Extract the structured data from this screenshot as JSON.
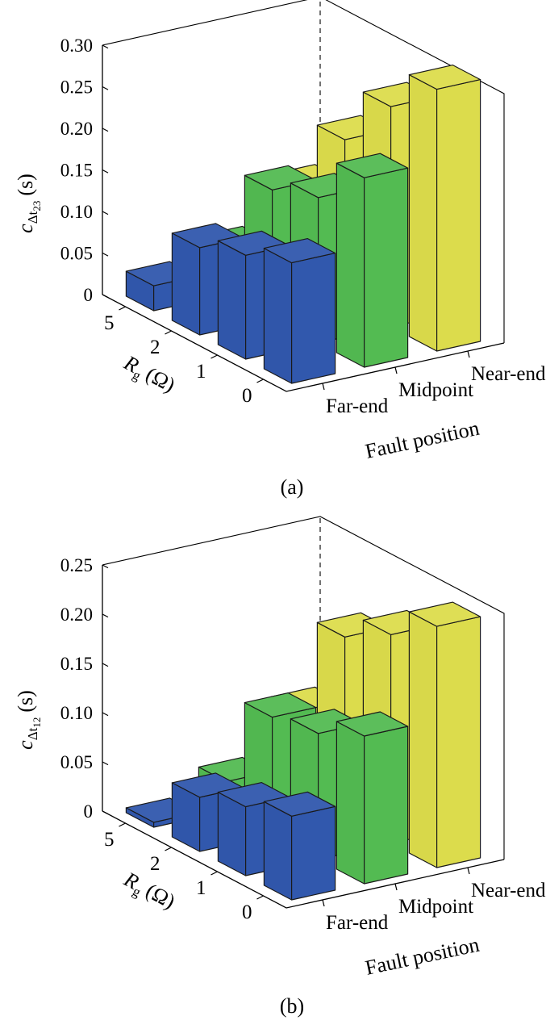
{
  "colors": {
    "far_end": "#3158ad",
    "midpoint": "#53bb52",
    "near_end": "#dcdc4c"
  },
  "chart_data": [
    {
      "type": "bar3d",
      "panel_label": "(a)",
      "ylabel": "c",
      "ylabel_sub": "Δt",
      "ylabel_subsub": "23",
      "ylabel_unit": "(s)",
      "xlabel": "Rg (Ω)",
      "xlabel_main": "R",
      "xlabel_sub": "g",
      "xlabel_unit": "(Ω)",
      "zlabel": "Fault position",
      "ylim": [
        0,
        0.3
      ],
      "yticks": [
        "0",
        "0.05",
        "0.10",
        "0.15",
        "0.20",
        "0.25",
        "0.30"
      ],
      "rg_categories": [
        "0",
        "1",
        "2",
        "5"
      ],
      "position_categories": [
        "Far-end",
        "Midpoint",
        "Near-end"
      ],
      "series": [
        {
          "name": "Far-end",
          "values": [
            0.145,
            0.125,
            0.105,
            0.03
          ]
        },
        {
          "name": "Midpoint",
          "values": [
            0.228,
            0.175,
            0.155,
            0.053
          ]
        },
        {
          "name": "Near-end",
          "values": [
            0.315,
            0.265,
            0.196,
            0.108
          ]
        }
      ]
    },
    {
      "type": "bar3d",
      "panel_label": "(b)",
      "ylabel": "c",
      "ylabel_sub": "Δt",
      "ylabel_subsub": "12",
      "ylabel_unit": "(s)",
      "xlabel": "Rg (Ω)",
      "xlabel_main": "R",
      "xlabel_sub": "g",
      "xlabel_unit": "(Ω)",
      "zlabel": "Fault position",
      "ylim": [
        0,
        0.25
      ],
      "yticks": [
        "0",
        "0.05",
        "0.10",
        "0.15",
        "0.20",
        "0.25"
      ],
      "rg_categories": [
        "0",
        "1",
        "2",
        "5"
      ],
      "position_categories": [
        "Far-end",
        "Midpoint",
        "Near-end"
      ],
      "series": [
        {
          "name": "Far-end",
          "values": [
            0.085,
            0.07,
            0.055,
            0.005
          ]
        },
        {
          "name": "Midpoint",
          "values": [
            0.15,
            0.128,
            0.12,
            0.03
          ]
        },
        {
          "name": "Near-end",
          "values": [
            0.245,
            0.212,
            0.185,
            0.085
          ]
        }
      ]
    }
  ]
}
